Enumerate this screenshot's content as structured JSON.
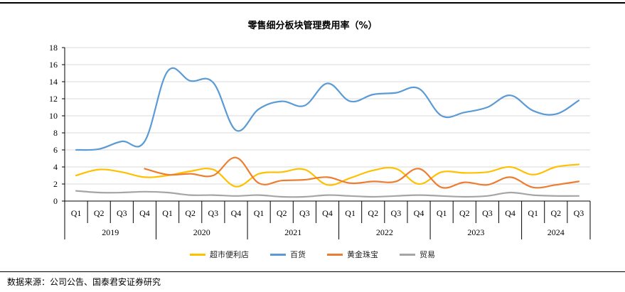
{
  "title": "零售细分板块管理费用率（%）",
  "source": "数据来源：公司公告、国泰君安证券研究",
  "chart_data": {
    "type": "line",
    "title": "零售细分板块管理费用率（%）",
    "ylim": [
      0,
      18
    ],
    "yticks": [
      0,
      2,
      4,
      6,
      8,
      10,
      12,
      14,
      16,
      18
    ],
    "grid": true,
    "legend_position": "bottom",
    "quarters": [
      "Q1",
      "Q2",
      "Q3",
      "Q4",
      "Q1",
      "Q2",
      "Q3",
      "Q4",
      "Q1",
      "Q2",
      "Q3",
      "Q4",
      "Q1",
      "Q2",
      "Q3",
      "Q4",
      "Q1",
      "Q2",
      "Q3",
      "Q4",
      "Q1",
      "Q2",
      "Q3"
    ],
    "years": [
      {
        "label": "2019",
        "count": 4
      },
      {
        "label": "2020",
        "count": 4
      },
      {
        "label": "2021",
        "count": 4
      },
      {
        "label": "2022",
        "count": 4
      },
      {
        "label": "2023",
        "count": 4
      },
      {
        "label": "2024",
        "count": 3
      }
    ],
    "series": [
      {
        "name": "超市便利店",
        "color": "#FFC000",
        "values": [
          3.0,
          3.7,
          3.4,
          2.8,
          3.0,
          3.5,
          3.7,
          1.7,
          3.2,
          3.4,
          3.7,
          1.9,
          2.7,
          3.6,
          3.8,
          2.0,
          3.4,
          3.3,
          3.4,
          4.0,
          3.1,
          4.0,
          4.3
        ]
      },
      {
        "name": "百货",
        "color": "#5B9BD5",
        "values": [
          6.0,
          6.1,
          7.0,
          7.0,
          15.2,
          14.1,
          13.9,
          8.3,
          10.8,
          11.7,
          11.2,
          13.8,
          11.7,
          12.5,
          12.7,
          13.2,
          10.0,
          10.4,
          11.0,
          12.4,
          10.6,
          10.2,
          11.8
        ]
      },
      {
        "name": "黄金珠宝",
        "color": "#ED7D31",
        "values": [
          null,
          null,
          null,
          3.8,
          3.1,
          3.2,
          3.0,
          5.1,
          2.1,
          2.4,
          2.5,
          2.8,
          2.1,
          2.3,
          2.3,
          3.8,
          1.6,
          2.2,
          1.9,
          2.8,
          1.6,
          1.9,
          2.3
        ]
      },
      {
        "name": "贸易",
        "color": "#A5A5A5",
        "values": [
          1.2,
          1.0,
          1.0,
          1.1,
          1.0,
          0.7,
          0.7,
          0.6,
          0.7,
          0.5,
          0.5,
          0.7,
          0.6,
          0.5,
          0.6,
          0.7,
          0.6,
          0.5,
          0.6,
          1.0,
          0.7,
          0.6,
          0.6
        ]
      }
    ]
  }
}
